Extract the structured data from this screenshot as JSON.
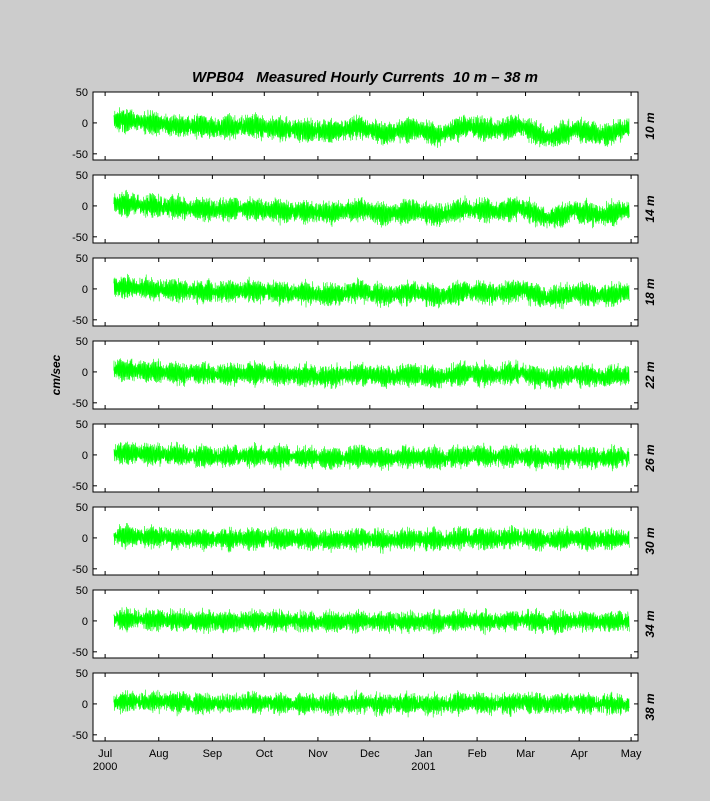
{
  "chart_data": {
    "type": "line",
    "title": "WPB04   Measured Hourly Currents  10 m – 38 m",
    "ylabel": "cm/sec",
    "ylim": [
      -60,
      50
    ],
    "yticks": [
      -50,
      0,
      50
    ],
    "x_range": [
      "2000-06-24",
      "2001-05-05"
    ],
    "data_start": "2000-07-06",
    "data_end": "2001-04-30",
    "month_ticks": [
      {
        "date": "2000-07-01",
        "label": "Jul",
        "year": "2000"
      },
      {
        "date": "2000-08-01",
        "label": "Aug",
        "year": ""
      },
      {
        "date": "2000-09-01",
        "label": "Sep",
        "year": ""
      },
      {
        "date": "2000-10-01",
        "label": "Oct",
        "year": ""
      },
      {
        "date": "2000-11-01",
        "label": "Nov",
        "year": ""
      },
      {
        "date": "2000-12-01",
        "label": "Dec",
        "year": ""
      },
      {
        "date": "2001-01-01",
        "label": "Jan",
        "year": "2001"
      },
      {
        "date": "2001-02-01",
        "label": "Feb",
        "year": ""
      },
      {
        "date": "2001-03-01",
        "label": "Mar",
        "year": ""
      },
      {
        "date": "2001-04-01",
        "label": "Apr",
        "year": ""
      },
      {
        "date": "2001-05-01",
        "label": "May",
        "year": ""
      }
    ],
    "series_color": "#00ff00",
    "series": [
      {
        "depth": "10 m",
        "values": [
          5,
          2,
          -3,
          -6,
          -8,
          -4,
          -10,
          -12,
          -15,
          -6,
          -18,
          -8,
          -20,
          -5,
          -12,
          -4,
          -25,
          -10,
          -20,
          -8
        ]
      },
      {
        "depth": "14 m",
        "values": [
          4,
          2,
          -2,
          -5,
          -6,
          -4,
          -8,
          -9,
          -12,
          -5,
          -14,
          -7,
          -16,
          -4,
          -9,
          -3,
          -20,
          -8,
          -16,
          -6
        ]
      },
      {
        "depth": "18 m",
        "values": [
          4,
          2,
          -2,
          -4,
          -5,
          -3,
          -6,
          -7,
          -10,
          -4,
          -11,
          -5,
          -12,
          -3,
          -7,
          -2,
          -15,
          -6,
          -12,
          -5
        ]
      },
      {
        "depth": "22 m",
        "values": [
          3,
          2,
          -1,
          -3,
          -4,
          -2,
          -4,
          -5,
          -8,
          -3,
          -8,
          -4,
          -9,
          -2,
          -5,
          -1,
          -11,
          -4,
          -9,
          -4
        ]
      },
      {
        "depth": "26 m",
        "values": [
          3,
          2,
          0,
          -2,
          -3,
          -1,
          -2,
          -3,
          -6,
          -2,
          -6,
          -3,
          -6,
          -1,
          -3,
          0,
          -7,
          -2,
          -6,
          -3
        ]
      },
      {
        "depth": "30 m",
        "values": [
          3,
          3,
          1,
          -1,
          -2,
          0,
          -1,
          -2,
          -4,
          -1,
          -4,
          -2,
          -4,
          0,
          -2,
          1,
          -4,
          -1,
          -3,
          -2
        ]
      },
      {
        "depth": "34 m",
        "values": [
          3,
          3,
          2,
          0,
          -1,
          1,
          0,
          -1,
          -2,
          0,
          -2,
          -1,
          -2,
          1,
          -1,
          2,
          -2,
          0,
          -1,
          -1
        ]
      },
      {
        "depth": "38 m",
        "values": [
          3,
          4,
          3,
          1,
          0,
          2,
          1,
          0,
          -1,
          1,
          -1,
          0,
          -1,
          2,
          0,
          3,
          0,
          1,
          0,
          0
        ]
      }
    ]
  }
}
